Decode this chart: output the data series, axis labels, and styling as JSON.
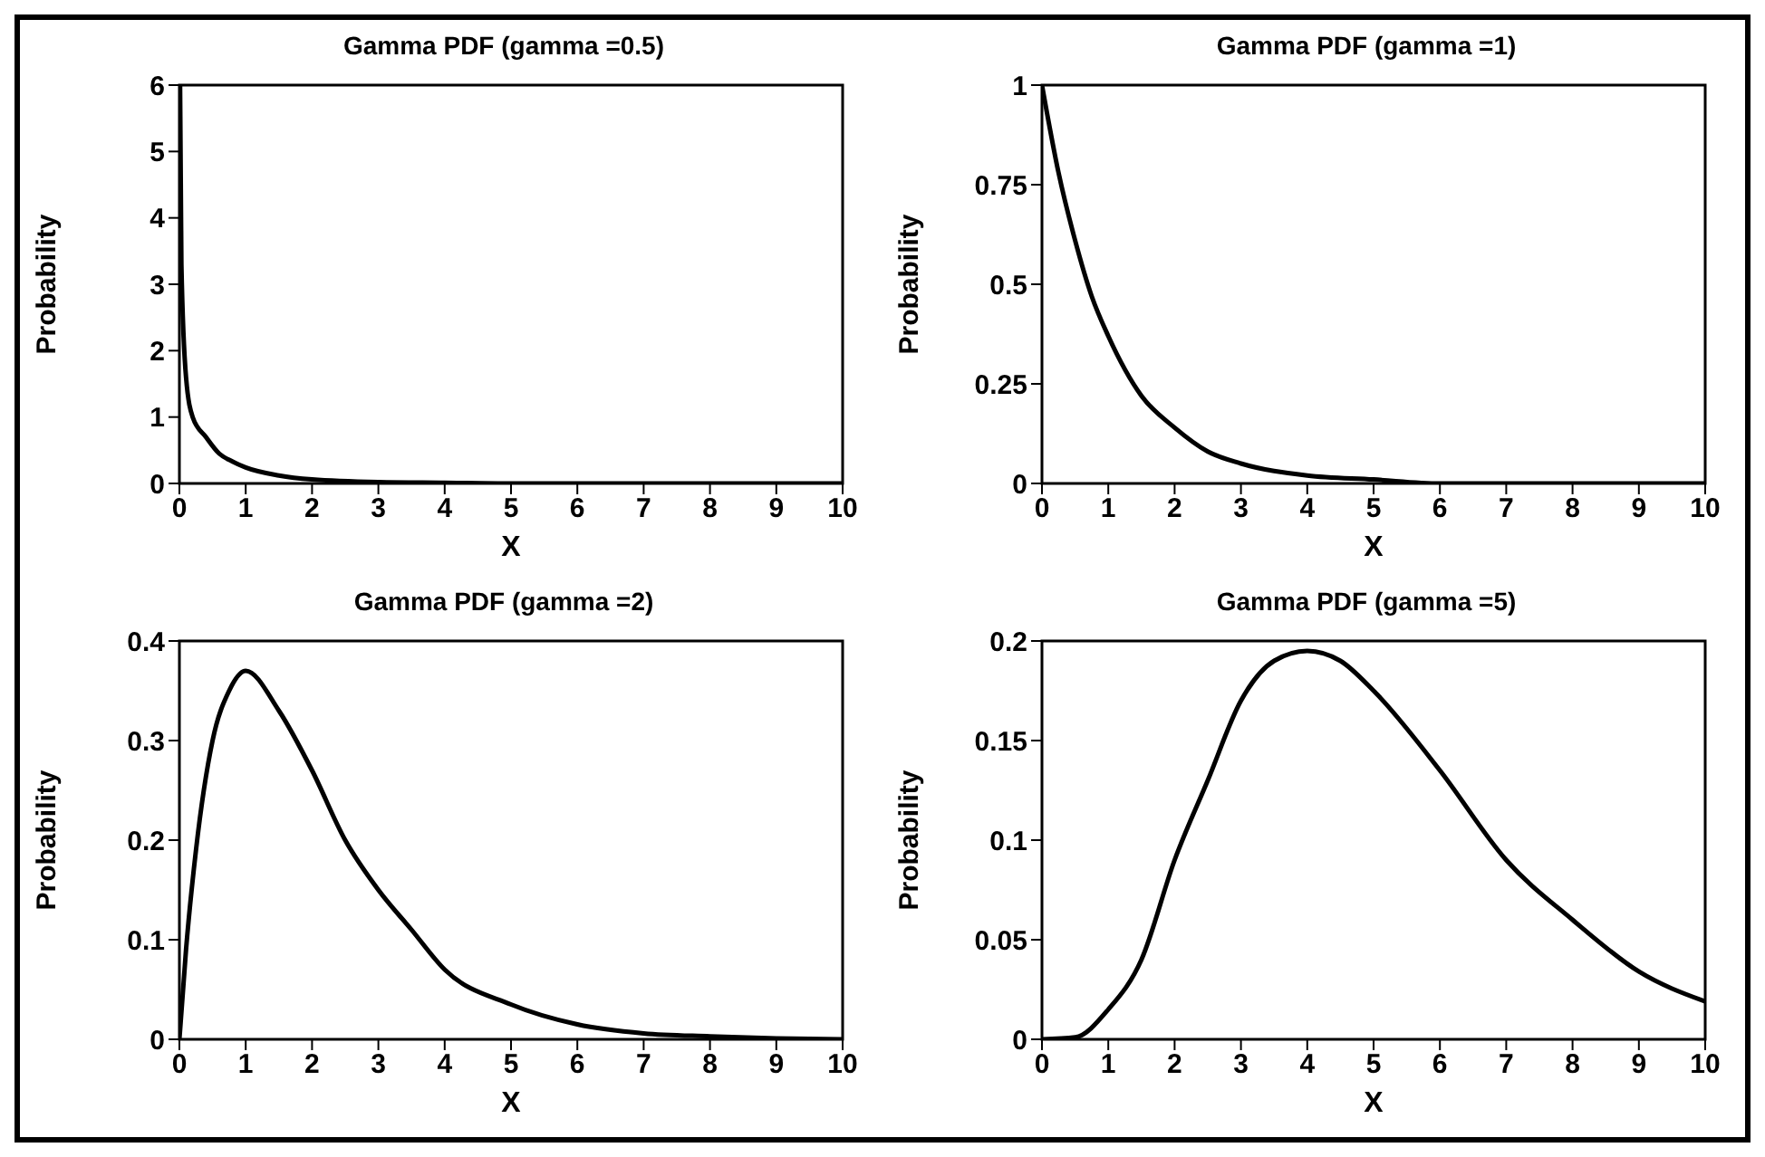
{
  "chart_data": [
    {
      "type": "line",
      "title": "Gamma PDF (gamma =0.5)",
      "xlabel": "X",
      "ylabel": "Probability",
      "xlim": [
        0,
        10
      ],
      "xticks": [
        0,
        1,
        2,
        3,
        4,
        5,
        6,
        7,
        8,
        9,
        10
      ],
      "ylim": [
        0,
        6
      ],
      "yticks": [
        0,
        1,
        2,
        3,
        4,
        5,
        6
      ],
      "x": [
        0.01,
        0.03,
        0.1,
        0.2,
        0.4,
        0.6,
        0.8,
        1,
        1.5,
        2,
        3,
        4,
        5,
        6,
        8,
        10
      ],
      "series": [
        {
          "color": "#000000",
          "values": [
            6,
            3.3,
            1.6,
            1,
            0.7,
            0.45,
            0.33,
            0.24,
            0.12,
            0.06,
            0.02,
            0.01,
            0,
            0,
            0,
            0
          ]
        }
      ]
    },
    {
      "type": "line",
      "title": "Gamma PDF (gamma =1)",
      "xlabel": "X",
      "ylabel": "Probability",
      "xlim": [
        0,
        10
      ],
      "xticks": [
        0,
        1,
        2,
        3,
        4,
        5,
        6,
        7,
        8,
        9,
        10
      ],
      "ylim": [
        0,
        1
      ],
      "yticks": [
        0,
        0.25,
        0.5,
        0.75,
        1
      ],
      "x": [
        0,
        0.25,
        0.5,
        0.75,
        1,
        1.5,
        2,
        2.5,
        3,
        4,
        5,
        6,
        8,
        10
      ],
      "series": [
        {
          "color": "#000000",
          "values": [
            1,
            0.78,
            0.61,
            0.47,
            0.37,
            0.22,
            0.14,
            0.08,
            0.05,
            0.02,
            0.01,
            0,
            0,
            0
          ]
        }
      ]
    },
    {
      "type": "line",
      "title": "Gamma PDF (gamma =2)",
      "xlabel": "X",
      "ylabel": "Probability",
      "xlim": [
        0,
        10
      ],
      "xticks": [
        0,
        1,
        2,
        3,
        4,
        5,
        6,
        7,
        8,
        9,
        10
      ],
      "ylim": [
        0,
        0.4
      ],
      "yticks": [
        0,
        0.1,
        0.2,
        0.3,
        0.4
      ],
      "x": [
        0,
        0.1,
        0.25,
        0.5,
        0.75,
        1,
        1.5,
        2,
        2.5,
        3,
        3.5,
        4,
        5,
        6,
        7,
        8,
        9,
        10
      ],
      "series": [
        {
          "color": "#000000",
          "values": [
            0,
            0.09,
            0.19,
            0.3,
            0.35,
            0.37,
            0.33,
            0.27,
            0.2,
            0.15,
            0.11,
            0.07,
            0.035,
            0.015,
            0.006,
            0.003,
            0.001,
            0
          ]
        }
      ]
    },
    {
      "type": "line",
      "title": "Gamma PDF (gamma =5)",
      "xlabel": "X",
      "ylabel": "Probability",
      "xlim": [
        0,
        10
      ],
      "xticks": [
        0,
        1,
        2,
        3,
        4,
        5,
        6,
        7,
        8,
        9,
        10
      ],
      "ylim": [
        0,
        0.2
      ],
      "yticks": [
        0,
        0.05,
        0.1,
        0.15,
        0.2
      ],
      "x": [
        0,
        0.5,
        1,
        1.5,
        2,
        2.5,
        3,
        3.5,
        4,
        4.5,
        5,
        6,
        7,
        8,
        9,
        10
      ],
      "series": [
        {
          "color": "#000000",
          "values": [
            0,
            0.001,
            0.015,
            0.04,
            0.09,
            0.13,
            0.17,
            0.19,
            0.195,
            0.19,
            0.175,
            0.135,
            0.09,
            0.06,
            0.034,
            0.019
          ]
        }
      ]
    }
  ]
}
